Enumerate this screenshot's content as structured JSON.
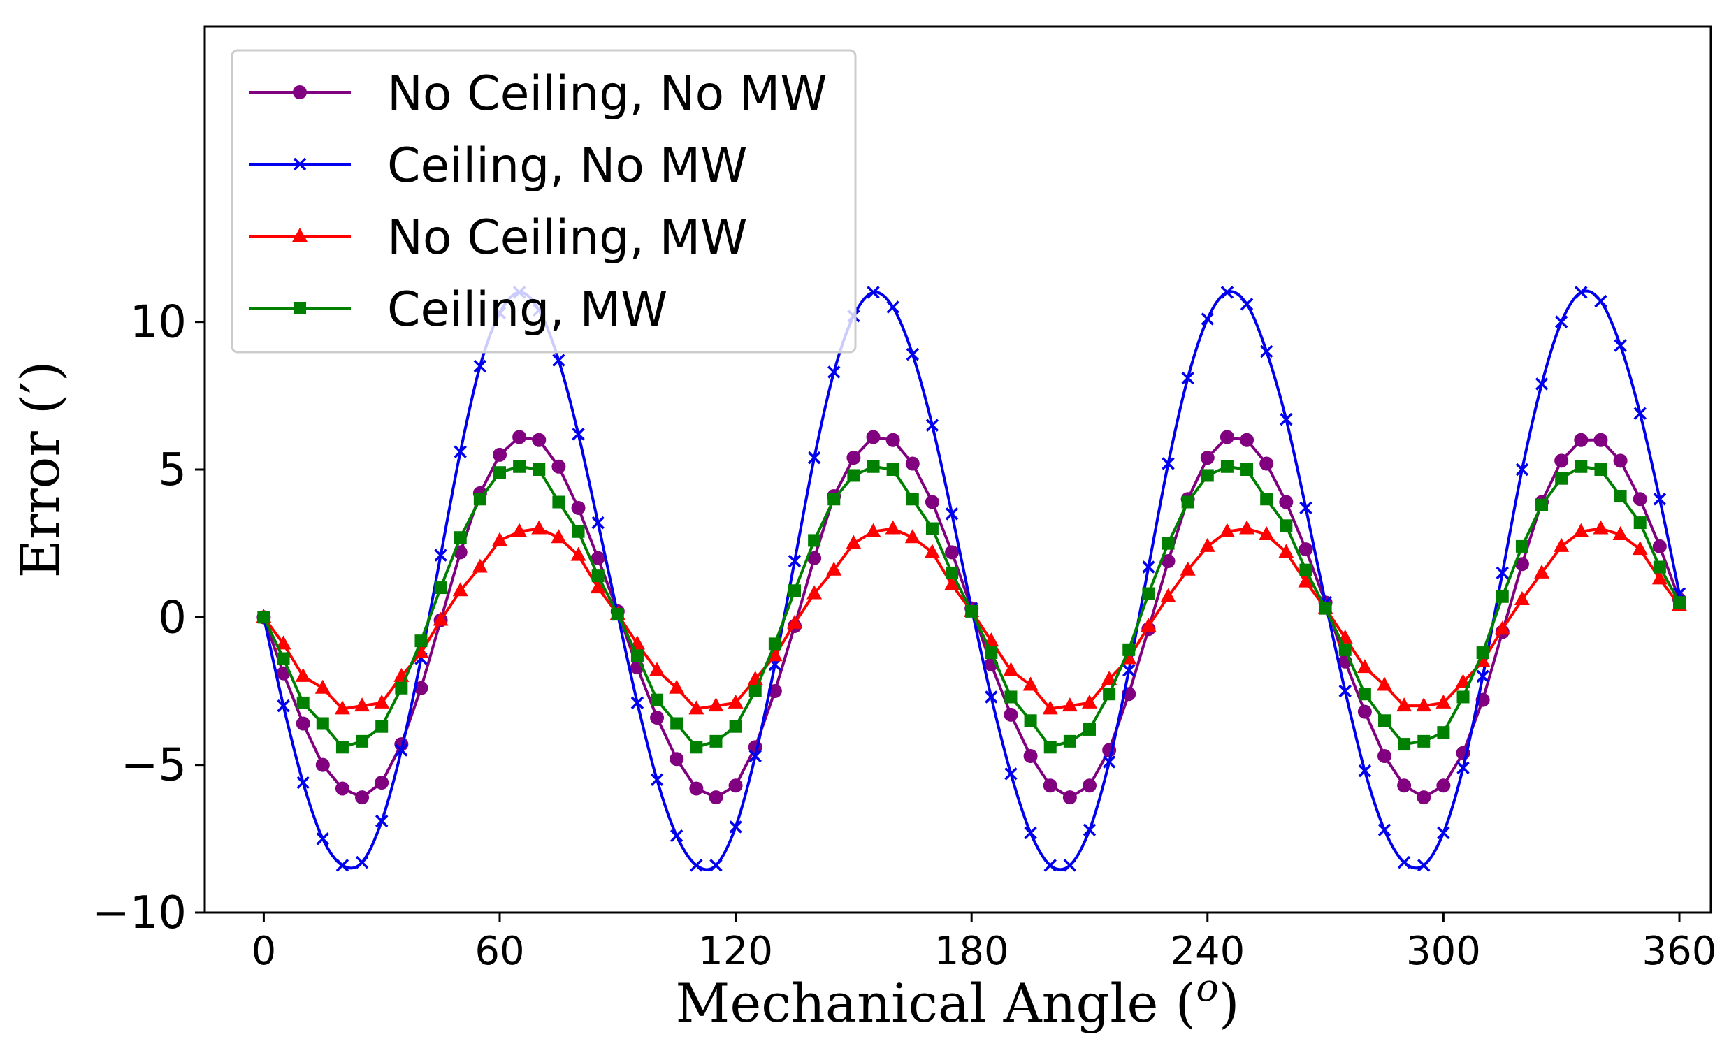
{
  "chart_data": {
    "type": "line",
    "title": "",
    "xlabel": "Mechanical Angle (",
    "xlabel_sup": "o",
    "xlabel_close": ")",
    "ylabel": "Error (′)",
    "xlim": [
      -15,
      368
    ],
    "ylim": [
      -10,
      20
    ],
    "xticks": [
      0,
      60,
      120,
      180,
      240,
      300,
      360
    ],
    "xtick_labels": [
      "0",
      "60",
      "120",
      "180",
      "240",
      "300",
      "360"
    ],
    "yticks": [
      -10,
      -5,
      0,
      5,
      10
    ],
    "ytick_labels": [
      "−10",
      "−5",
      "0",
      "5",
      "10"
    ],
    "legend_position": "top-left",
    "x": [
      0,
      5,
      10,
      15,
      20,
      25,
      30,
      35,
      40,
      45,
      50,
      55,
      60,
      65,
      70,
      75,
      80,
      85,
      90,
      95,
      100,
      105,
      110,
      115,
      120,
      125,
      130,
      135,
      140,
      145,
      150,
      155,
      160,
      165,
      170,
      175,
      180,
      185,
      190,
      195,
      200,
      205,
      210,
      215,
      220,
      225,
      230,
      235,
      240,
      245,
      250,
      255,
      260,
      265,
      270,
      275,
      280,
      285,
      290,
      295,
      300,
      305,
      310,
      315,
      320,
      325,
      330,
      335,
      340,
      345,
      350,
      355,
      360
    ],
    "series": [
      {
        "name": "No Ceiling, No MW",
        "color": "#800080",
        "marker": "circle",
        "values": [
          0.0,
          -1.9,
          -3.6,
          -5.0,
          -5.8,
          -6.1,
          -5.6,
          -4.3,
          -2.4,
          -0.1,
          2.2,
          4.2,
          5.5,
          6.1,
          6.0,
          5.1,
          3.7,
          2.0,
          0.2,
          -1.7,
          -3.4,
          -4.8,
          -5.8,
          -6.1,
          -5.7,
          -4.4,
          -2.5,
          -0.3,
          2.0,
          4.1,
          5.4,
          6.1,
          6.0,
          5.2,
          3.9,
          2.2,
          0.3,
          -1.6,
          -3.3,
          -4.7,
          -5.7,
          -6.1,
          -5.7,
          -4.5,
          -2.6,
          -0.4,
          1.9,
          4.0,
          5.4,
          6.1,
          6.0,
          5.2,
          3.9,
          2.3,
          0.5,
          -1.5,
          -3.2,
          -4.7,
          -5.7,
          -6.1,
          -5.7,
          -4.6,
          -2.8,
          -0.5,
          1.8,
          3.9,
          5.3,
          6.0,
          6.0,
          5.3,
          4.0,
          2.4,
          0.6
        ]
      },
      {
        "name": "Ceiling, No MW",
        "color": "#0000ee",
        "marker": "x",
        "values": [
          0.0,
          -3.0,
          -5.6,
          -7.5,
          -8.4,
          -8.3,
          -6.9,
          -4.5,
          -1.4,
          2.1,
          5.6,
          8.5,
          10.3,
          11.0,
          10.4,
          8.7,
          6.2,
          3.2,
          0.1,
          -2.9,
          -5.5,
          -7.4,
          -8.4,
          -8.4,
          -7.1,
          -4.7,
          -1.6,
          1.9,
          5.4,
          8.3,
          10.2,
          11.0,
          10.5,
          8.9,
          6.5,
          3.5,
          0.3,
          -2.7,
          -5.3,
          -7.3,
          -8.4,
          -8.4,
          -7.2,
          -4.9,
          -1.8,
          1.7,
          5.2,
          8.1,
          10.1,
          11.0,
          10.6,
          9.0,
          6.7,
          3.7,
          0.5,
          -2.5,
          -5.2,
          -7.2,
          -8.3,
          -8.4,
          -7.3,
          -5.1,
          -2.0,
          1.5,
          5.0,
          7.9,
          10.0,
          11.0,
          10.7,
          9.2,
          6.9,
          4.0,
          0.8
        ]
      },
      {
        "name": "No Ceiling, MW",
        "color": "#ff0000",
        "marker": "triangle",
        "values": [
          0.0,
          -0.9,
          -2.0,
          -2.4,
          -3.1,
          -3.0,
          -2.9,
          -2.0,
          -1.2,
          -0.1,
          0.9,
          1.7,
          2.6,
          2.9,
          3.0,
          2.7,
          2.1,
          1.0,
          0.1,
          -0.9,
          -1.8,
          -2.4,
          -3.1,
          -3.0,
          -2.9,
          -2.1,
          -1.3,
          -0.2,
          0.8,
          1.6,
          2.5,
          2.9,
          3.0,
          2.7,
          2.2,
          1.1,
          0.2,
          -0.8,
          -1.8,
          -2.3,
          -3.1,
          -3.0,
          -2.9,
          -2.1,
          -1.4,
          -0.3,
          0.7,
          1.6,
          2.4,
          2.9,
          3.0,
          2.8,
          2.2,
          1.2,
          0.3,
          -0.7,
          -1.7,
          -2.3,
          -3.0,
          -3.0,
          -2.9,
          -2.2,
          -1.5,
          -0.4,
          0.6,
          1.5,
          2.4,
          2.9,
          3.0,
          2.8,
          2.3,
          1.3,
          0.4
        ]
      },
      {
        "name": "Ceiling, MW",
        "color": "#008000",
        "marker": "square",
        "values": [
          0.0,
          -1.4,
          -2.9,
          -3.6,
          -4.4,
          -4.2,
          -3.7,
          -2.4,
          -0.8,
          1.0,
          2.7,
          4.0,
          4.9,
          5.1,
          5.0,
          3.9,
          2.9,
          1.4,
          0.1,
          -1.3,
          -2.8,
          -3.6,
          -4.4,
          -4.2,
          -3.7,
          -2.5,
          -0.9,
          0.9,
          2.6,
          4.0,
          4.8,
          5.1,
          5.0,
          4.0,
          3.0,
          1.5,
          0.2,
          -1.2,
          -2.7,
          -3.5,
          -4.4,
          -4.2,
          -3.8,
          -2.6,
          -1.1,
          0.8,
          2.5,
          3.9,
          4.8,
          5.1,
          5.0,
          4.0,
          3.1,
          1.6,
          0.3,
          -1.1,
          -2.6,
          -3.5,
          -4.3,
          -4.2,
          -3.9,
          -2.7,
          -1.2,
          0.7,
          2.4,
          3.8,
          4.7,
          5.1,
          5.0,
          4.1,
          3.2,
          1.7,
          0.5
        ]
      }
    ]
  }
}
